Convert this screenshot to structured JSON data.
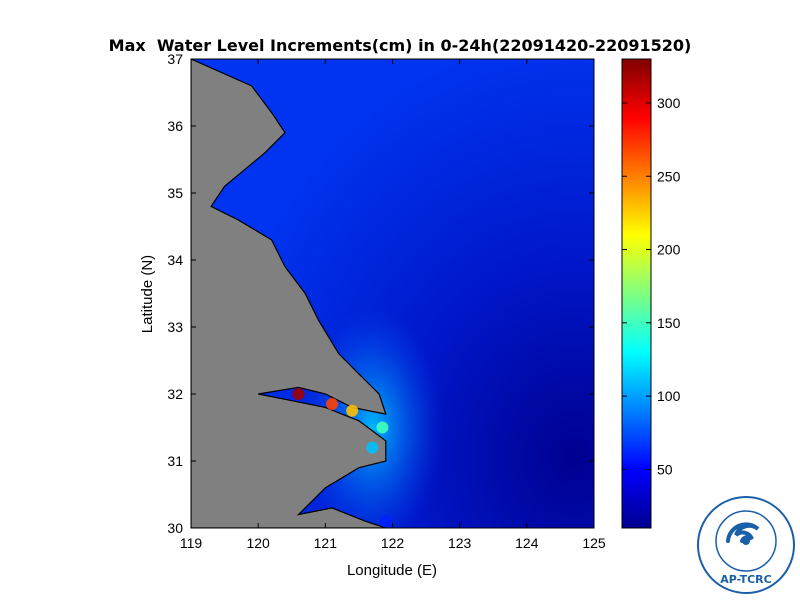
{
  "title": "Max  Water Level Increments(cm) in 0-24h(22091420-22091520)",
  "logo": {
    "text": "AP-TCRC"
  },
  "chart_data": {
    "type": "heatmap",
    "title": "Max  Water Level Increments(cm) in 0-24h(22091420-22091520)",
    "xlabel": "Longitude (E)",
    "ylabel": "Latitude (N)",
    "xlim": [
      119,
      125
    ],
    "ylim": [
      30,
      37
    ],
    "xticks": [
      "119",
      "120",
      "121",
      "122",
      "123",
      "124",
      "125"
    ],
    "yticks": [
      "30",
      "31",
      "32",
      "33",
      "34",
      "35",
      "36",
      "37"
    ],
    "colorbar": {
      "colormap": "jet",
      "range": [
        10,
        330
      ],
      "ticks": [
        "50",
        "100",
        "150",
        "200",
        "250",
        "300"
      ],
      "tick_values": [
        50,
        100,
        150,
        200,
        250,
        300
      ]
    },
    "land_color": "#808080",
    "grid": false,
    "coast": [
      [
        119.9,
        36.6
      ],
      [
        120.2,
        36.2
      ],
      [
        120.4,
        35.9
      ],
      [
        120.1,
        35.6
      ],
      [
        119.5,
        35.1
      ],
      [
        119.3,
        34.8
      ],
      [
        119.7,
        34.6
      ],
      [
        120.2,
        34.3
      ],
      [
        120.4,
        33.9
      ],
      [
        120.7,
        33.5
      ],
      [
        120.9,
        33.1
      ],
      [
        121.2,
        32.6
      ],
      [
        121.5,
        32.3
      ],
      [
        121.8,
        32.0
      ],
      [
        121.9,
        31.7
      ],
      [
        121.4,
        31.8
      ],
      [
        121.0,
        32.0
      ],
      [
        120.6,
        32.1
      ],
      [
        120.0,
        32.0
      ],
      [
        120.5,
        31.9
      ],
      [
        121.0,
        31.8
      ],
      [
        121.5,
        31.6
      ],
      [
        121.9,
        31.3
      ],
      [
        121.9,
        31.0
      ],
      [
        121.5,
        30.9
      ],
      [
        121.0,
        30.6
      ],
      [
        120.7,
        30.3
      ],
      [
        120.6,
        30.2
      ],
      [
        121.1,
        30.3
      ],
      [
        121.6,
        30.1
      ],
      [
        121.9,
        30.0
      ]
    ],
    "hotspots": [
      {
        "lon": 121.85,
        "lat": 31.5,
        "value": 150
      },
      {
        "lon": 121.4,
        "lat": 31.75,
        "value": 230
      },
      {
        "lon": 120.6,
        "lat": 32.0,
        "value": 320
      },
      {
        "lon": 121.1,
        "lat": 31.85,
        "value": 270
      },
      {
        "lon": 121.7,
        "lat": 31.2,
        "value": 110
      },
      {
        "lon": 121.9,
        "lat": 30.1,
        "value": 60
      }
    ]
  }
}
